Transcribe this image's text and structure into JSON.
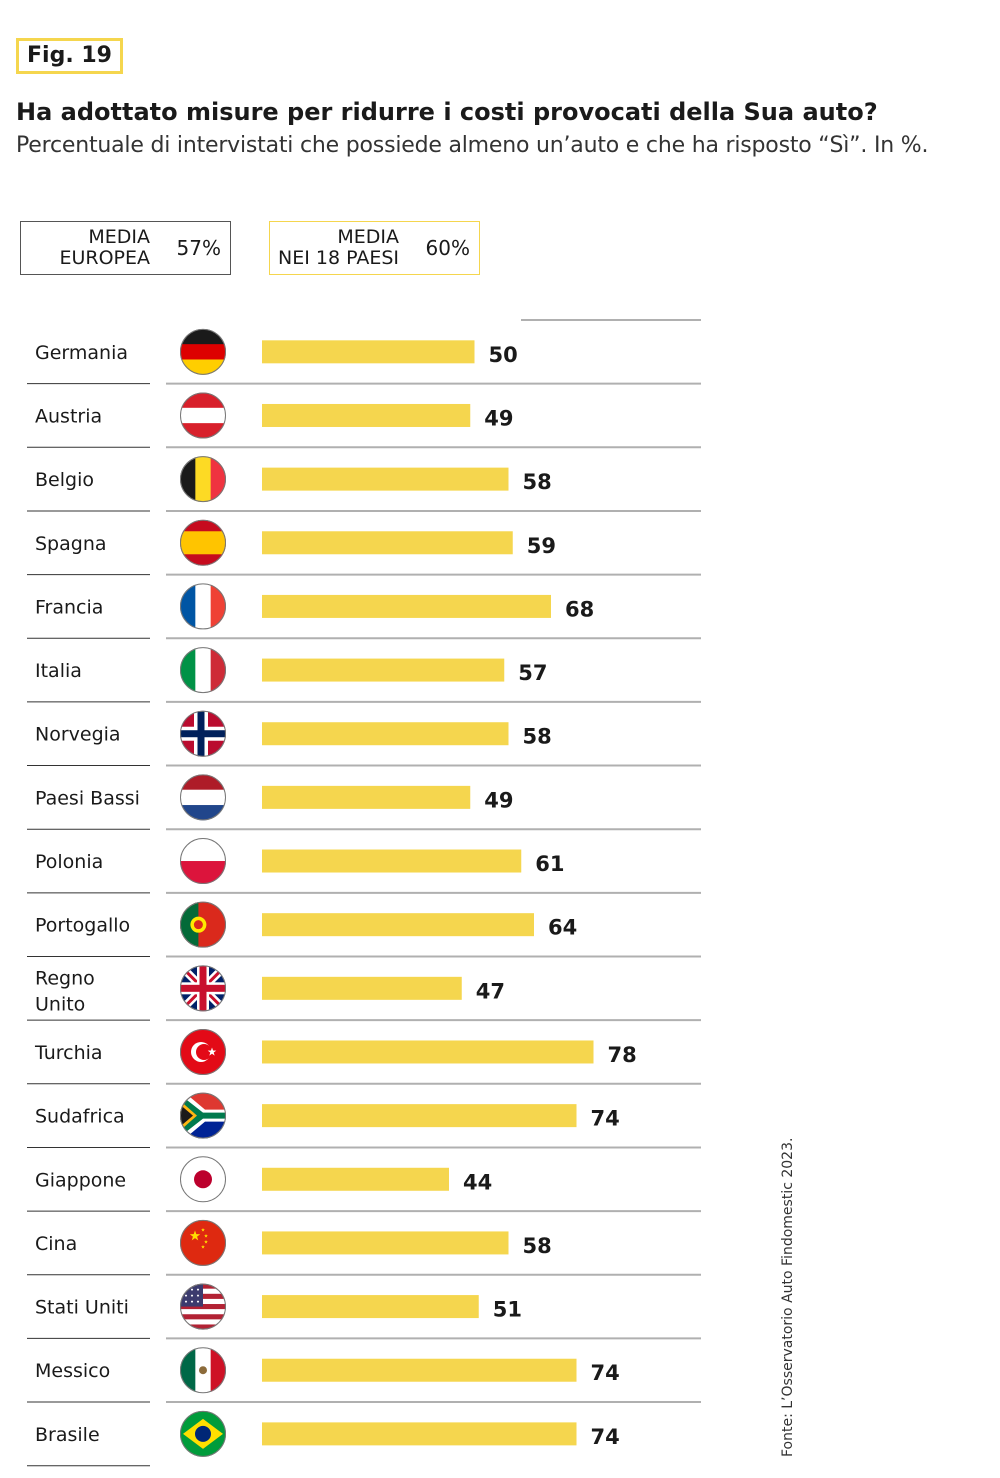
{
  "figure": {
    "label": "Fig. 19",
    "title": "Ha adottato misure per ridurre i costi provocati della Sua auto?",
    "subtitle": "Percentuale di intervistati che possiede almeno un’auto e che ha risposto “Sì”. In %."
  },
  "averages": {
    "europe": {
      "label": "MEDIA\nEUROPEA",
      "value": "57%"
    },
    "eighteen": {
      "label": "MEDIA\nNEI 18 PAESI",
      "value": "60%"
    }
  },
  "source": "Fonte: L’Osservatorio Auto Findomestic 2023.",
  "colors": {
    "bar": "#f5d64e",
    "rule": "#b0b0b0"
  },
  "chart_data": {
    "type": "bar",
    "orientation": "horizontal",
    "categories": [
      "Germania",
      "Austria",
      "Belgio",
      "Spagna",
      "Francia",
      "Italia",
      "Norvegia",
      "Paesi Bassi",
      "Polonia",
      "Portogallo",
      "Regno\nUnito",
      "Turchia",
      "Sudafrica",
      "Giappone",
      "Cina",
      "Stati Uniti",
      "Messico",
      "Brasile"
    ],
    "flags": [
      "germany-flag-icon",
      "austria-flag-icon",
      "belgium-flag-icon",
      "spain-flag-icon",
      "france-flag-icon",
      "italy-flag-icon",
      "norway-flag-icon",
      "netherlands-flag-icon",
      "poland-flag-icon",
      "portugal-flag-icon",
      "uk-flag-icon",
      "turkey-flag-icon",
      "south-africa-flag-icon",
      "japan-flag-icon",
      "china-flag-icon",
      "usa-flag-icon",
      "mexico-flag-icon",
      "brazil-flag-icon"
    ],
    "values": [
      50,
      49,
      58,
      59,
      68,
      57,
      58,
      49,
      61,
      64,
      47,
      78,
      74,
      44,
      58,
      51,
      74,
      74
    ],
    "title": "",
    "xlabel": "",
    "ylabel": "",
    "xlim": [
      0,
      100
    ]
  }
}
